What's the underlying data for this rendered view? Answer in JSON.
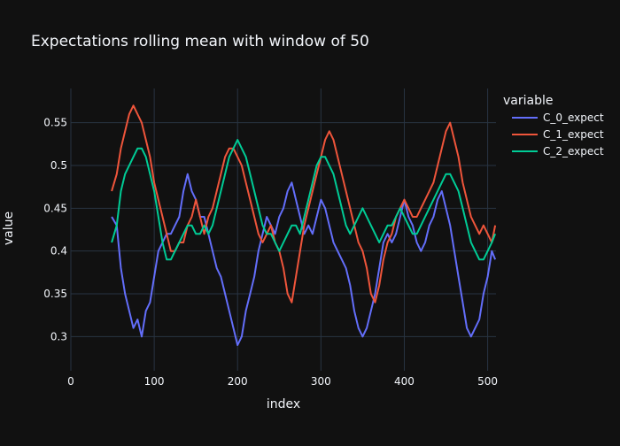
{
  "chart_data": {
    "type": "line",
    "title": "Expectations rolling mean with window of 50",
    "xlabel": "index",
    "ylabel": "value",
    "legend_title": "variable",
    "legend_position": "top-right",
    "xlim": [
      0,
      510
    ],
    "ylim": [
      0.26,
      0.59
    ],
    "xticks": [
      0,
      100,
      200,
      300,
      400,
      500
    ],
    "yticks": [
      0.3,
      0.35,
      0.4,
      0.45,
      0.5,
      0.55
    ],
    "xtick_labels": [
      "0",
      "100",
      "200",
      "300",
      "400",
      "500"
    ],
    "ytick_labels": [
      "0.3",
      "0.35",
      "0.4",
      "0.45",
      "0.5",
      "0.55"
    ],
    "grid": true,
    "background": "#111111",
    "grid_color": "#283442",
    "x": [
      49,
      55,
      60,
      65,
      70,
      75,
      80,
      85,
      90,
      95,
      100,
      105,
      110,
      115,
      120,
      125,
      130,
      135,
      140,
      145,
      150,
      155,
      160,
      165,
      170,
      175,
      180,
      185,
      190,
      195,
      200,
      205,
      210,
      215,
      220,
      225,
      230,
      235,
      240,
      245,
      250,
      255,
      260,
      265,
      270,
      275,
      280,
      285,
      290,
      295,
      300,
      305,
      310,
      315,
      320,
      325,
      330,
      335,
      340,
      345,
      350,
      355,
      360,
      365,
      370,
      375,
      380,
      385,
      390,
      395,
      400,
      405,
      410,
      415,
      420,
      425,
      430,
      435,
      440,
      445,
      450,
      455,
      460,
      465,
      470,
      475,
      480,
      485,
      490,
      495,
      500,
      505,
      509
    ],
    "series": [
      {
        "name": "C_0_expect",
        "color": "#636efa",
        "values": [
          0.44,
          0.43,
          0.38,
          0.35,
          0.33,
          0.31,
          0.32,
          0.3,
          0.33,
          0.34,
          0.37,
          0.4,
          0.41,
          0.42,
          0.42,
          0.43,
          0.44,
          0.47,
          0.49,
          0.47,
          0.46,
          0.44,
          0.44,
          0.42,
          0.4,
          0.38,
          0.37,
          0.35,
          0.33,
          0.31,
          0.29,
          0.3,
          0.33,
          0.35,
          0.37,
          0.4,
          0.42,
          0.44,
          0.43,
          0.42,
          0.44,
          0.45,
          0.47,
          0.48,
          0.46,
          0.44,
          0.42,
          0.43,
          0.42,
          0.44,
          0.46,
          0.45,
          0.43,
          0.41,
          0.4,
          0.39,
          0.38,
          0.36,
          0.33,
          0.31,
          0.3,
          0.31,
          0.33,
          0.35,
          0.38,
          0.41,
          0.42,
          0.41,
          0.42,
          0.44,
          0.46,
          0.44,
          0.43,
          0.41,
          0.4,
          0.41,
          0.43,
          0.44,
          0.46,
          0.47,
          0.45,
          0.43,
          0.4,
          0.37,
          0.34,
          0.31,
          0.3,
          0.31,
          0.32,
          0.35,
          0.37,
          0.4,
          0.39
        ]
      },
      {
        "name": "C_1_expect",
        "color": "#ef553b",
        "values": [
          0.47,
          0.49,
          0.52,
          0.54,
          0.56,
          0.57,
          0.56,
          0.55,
          0.53,
          0.51,
          0.48,
          0.46,
          0.44,
          0.42,
          0.4,
          0.4,
          0.41,
          0.41,
          0.43,
          0.44,
          0.46,
          0.44,
          0.42,
          0.44,
          0.45,
          0.47,
          0.49,
          0.51,
          0.52,
          0.52,
          0.51,
          0.5,
          0.48,
          0.46,
          0.44,
          0.42,
          0.41,
          0.42,
          0.43,
          0.41,
          0.4,
          0.38,
          0.35,
          0.34,
          0.37,
          0.4,
          0.43,
          0.45,
          0.47,
          0.49,
          0.51,
          0.53,
          0.54,
          0.53,
          0.51,
          0.49,
          0.47,
          0.45,
          0.43,
          0.41,
          0.4,
          0.38,
          0.35,
          0.34,
          0.36,
          0.39,
          0.41,
          0.42,
          0.44,
          0.45,
          0.46,
          0.45,
          0.44,
          0.44,
          0.45,
          0.46,
          0.47,
          0.48,
          0.5,
          0.52,
          0.54,
          0.55,
          0.53,
          0.51,
          0.48,
          0.46,
          0.44,
          0.43,
          0.42,
          0.43,
          0.42,
          0.41,
          0.43
        ]
      },
      {
        "name": "C_2_expect",
        "color": "#00cc96",
        "values": [
          0.41,
          0.43,
          0.47,
          0.49,
          0.5,
          0.51,
          0.52,
          0.52,
          0.51,
          0.49,
          0.47,
          0.44,
          0.41,
          0.39,
          0.39,
          0.4,
          0.41,
          0.42,
          0.43,
          0.43,
          0.42,
          0.42,
          0.43,
          0.42,
          0.43,
          0.45,
          0.47,
          0.49,
          0.51,
          0.52,
          0.53,
          0.52,
          0.51,
          0.49,
          0.47,
          0.45,
          0.43,
          0.42,
          0.42,
          0.41,
          0.4,
          0.41,
          0.42,
          0.43,
          0.43,
          0.42,
          0.44,
          0.46,
          0.48,
          0.5,
          0.51,
          0.51,
          0.5,
          0.49,
          0.47,
          0.45,
          0.43,
          0.42,
          0.43,
          0.44,
          0.45,
          0.44,
          0.43,
          0.42,
          0.41,
          0.42,
          0.43,
          0.43,
          0.44,
          0.45,
          0.44,
          0.43,
          0.42,
          0.42,
          0.43,
          0.44,
          0.45,
          0.46,
          0.47,
          0.48,
          0.49,
          0.49,
          0.48,
          0.47,
          0.45,
          0.43,
          0.41,
          0.4,
          0.39,
          0.39,
          0.4,
          0.41,
          0.42
        ]
      }
    ]
  }
}
